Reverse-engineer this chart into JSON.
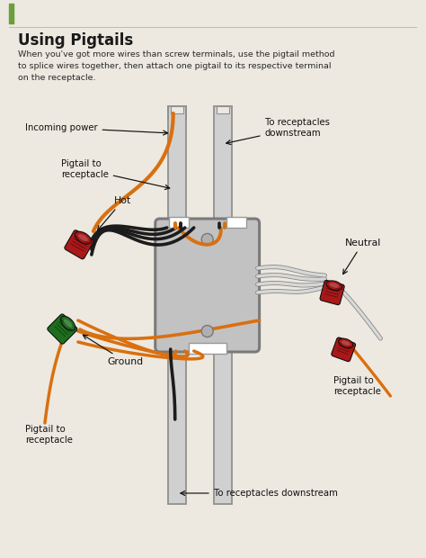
{
  "title": "Using Pigtails",
  "subtitle": "When you've got more wires than screw terminals, use the pigtail method\nto splice wires together, then attach one pigtail to its respective terminal\non the receptacle.",
  "bg_color": "#ede9e0",
  "title_color": "#1a1a1a",
  "subtitle_color": "#2a2a2a",
  "green_accent": "#6b9e3c",
  "wire_black": "#1c1c1c",
  "wire_orange": "#d97010",
  "wire_white": "#d8d8d8",
  "wire_white_stroke": "#888888",
  "connector_red": "#aa1818",
  "connector_green": "#1e6e1e",
  "box_fill": "#c2c2c2",
  "box_stroke": "#7a7a7a",
  "conduit_fill": "#d0d0d0",
  "conduit_stroke": "#909090",
  "label_incoming_power": "Incoming power",
  "label_pigtail_top_left": "Pigtail to\nreceptacle",
  "label_to_receptacles_top": "To receptacles\ndownstream",
  "label_hot": "Hot",
  "label_ground": "Ground",
  "label_pigtail_bottom_left": "Pigtail to\nreceptacle",
  "label_neutral": "Neutral",
  "label_pigtail_right": "Pigtail to\nreceptacle",
  "label_to_receptacles_bottom": "To receptacles downstream"
}
